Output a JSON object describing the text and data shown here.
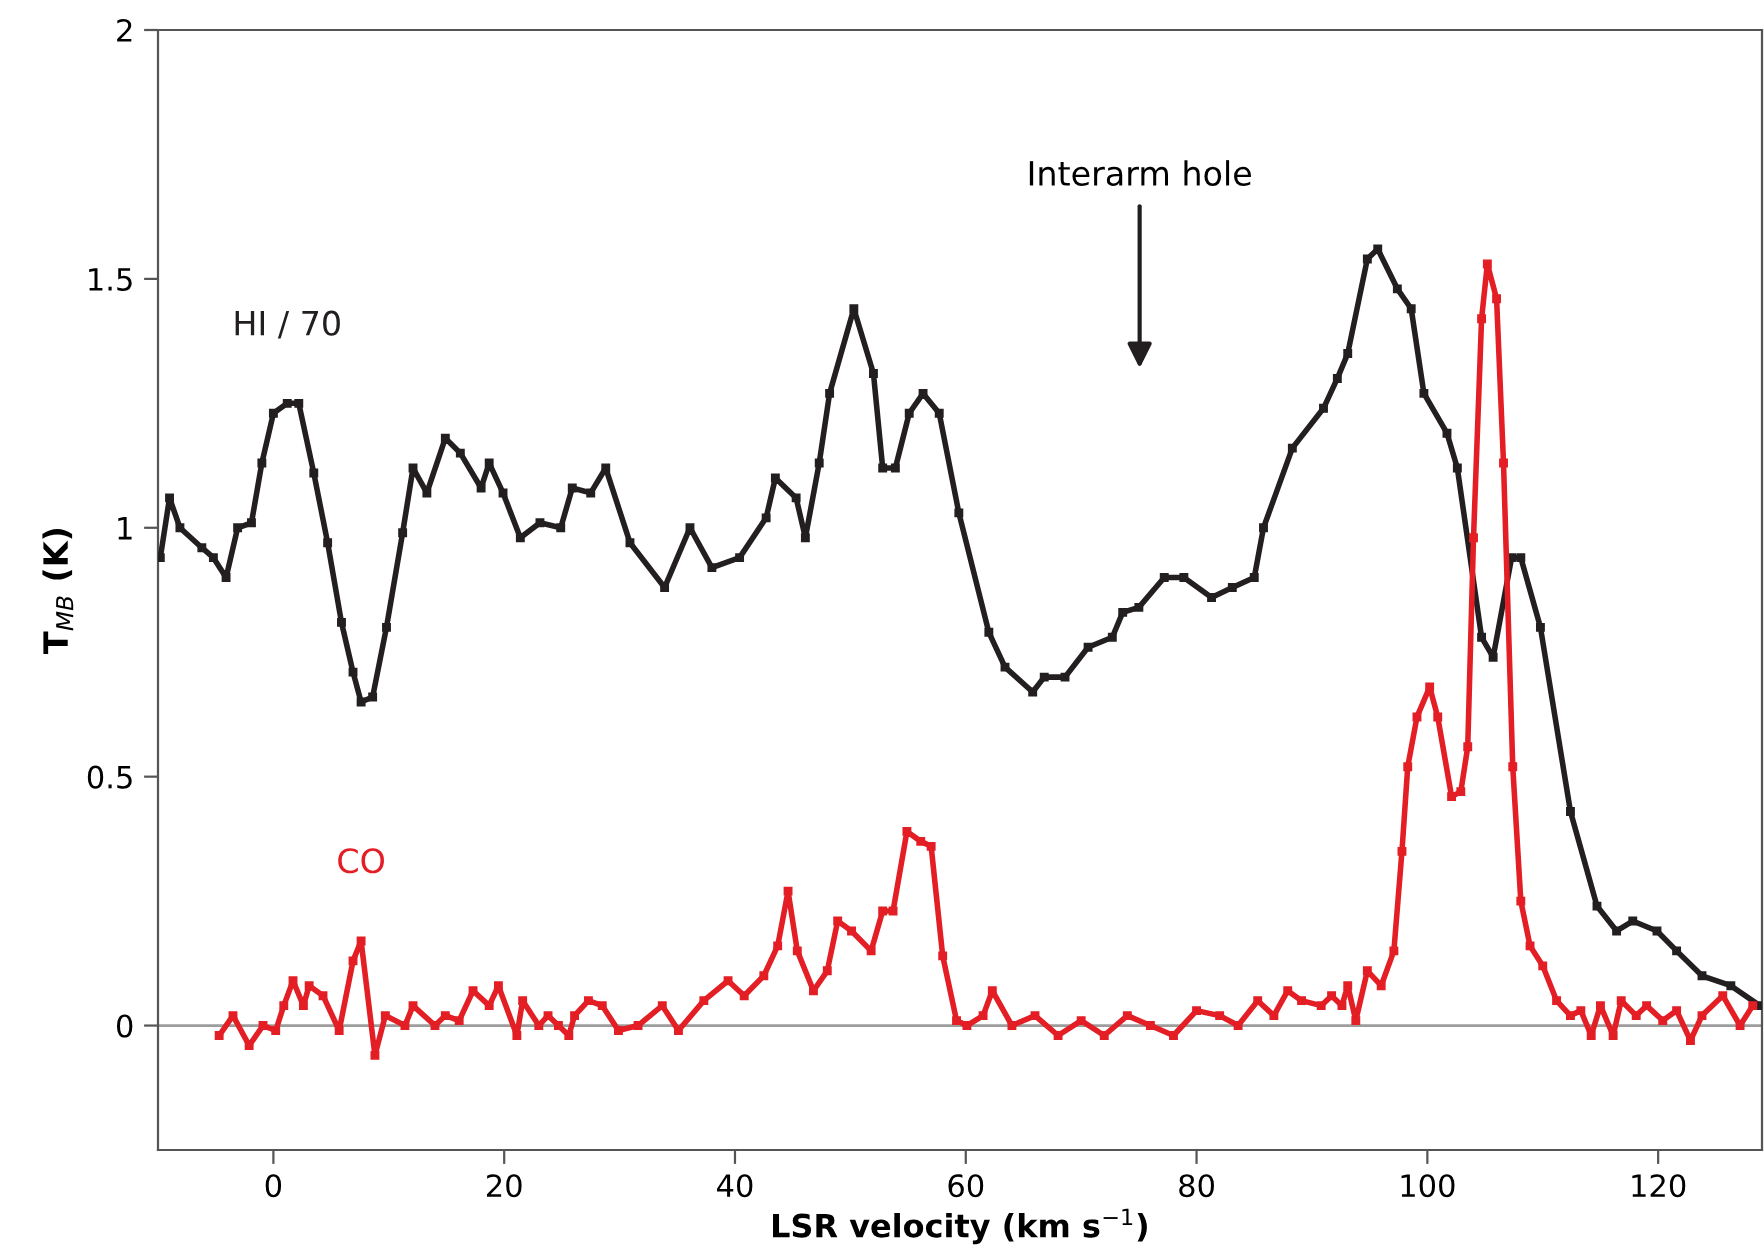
{
  "chart_data": {
    "type": "line",
    "xlabel": "LSR velocity (km s$^{−1}$)",
    "ylabel": "T$_{MB}$ (K)",
    "xlim": [
      -10,
      129
    ],
    "ylim": [
      -0.25,
      2
    ],
    "xticks": [
      0,
      20,
      40,
      60,
      80,
      100,
      120
    ],
    "yticks": [
      0,
      0.5,
      1,
      1.5,
      2
    ],
    "grid": false,
    "legend": false,
    "marker": "square",
    "line_style": "solid",
    "ref_lines": [
      {
        "axis": "y",
        "value": 0,
        "color": "#9d9d9d"
      }
    ],
    "annotations": [
      "Interarm hole"
    ],
    "series": [
      {
        "name": "HI / 70",
        "color": "#231f20",
        "x": [
          -9.8,
          -9,
          -8.1,
          -6.2,
          -5.2,
          -4.1,
          -3.1,
          -1.9,
          -1.0,
          0,
          1.2,
          2.2,
          3.5,
          4.7,
          5.9,
          6.9,
          7.6,
          8.6,
          9.8,
          11.2,
          12.1,
          13.3,
          14.9,
          16.2,
          18.0,
          18.7,
          19.9,
          21.4,
          23.1,
          24.9,
          25.9,
          27.5,
          28.8,
          30.9,
          33.9,
          36.1,
          38.0,
          40.4,
          42.7,
          43.5,
          45.3,
          46.1,
          47.3,
          48.2,
          50.3,
          52.0,
          52.8,
          53.9,
          55.1,
          56.3,
          57.7,
          59.4,
          62.0,
          63.4,
          65.8,
          66.8,
          68.6,
          70.6,
          72.7,
          73.6,
          75.0,
          77.2,
          78.9,
          81.3,
          83.1,
          85.0,
          85.8,
          88.3,
          91.0,
          92.2,
          93.1,
          94.8,
          95.7,
          97.4,
          98.6,
          99.7,
          101.7,
          102.6,
          104.7,
          105.7,
          107.3,
          108.1,
          109.8,
          112.4,
          114.7,
          116.4,
          117.8,
          119.9,
          121.6,
          123.8,
          126.3,
          128.8
        ],
        "values": [
          0.94,
          1.06,
          1.0,
          0.96,
          0.94,
          0.9,
          1.0,
          1.01,
          1.13,
          1.23,
          1.25,
          1.25,
          1.11,
          0.97,
          0.81,
          0.71,
          0.65,
          0.66,
          0.8,
          0.99,
          1.12,
          1.07,
          1.18,
          1.15,
          1.08,
          1.13,
          1.07,
          0.98,
          1.01,
          1.0,
          1.08,
          1.07,
          1.12,
          0.97,
          0.88,
          1.0,
          0.92,
          0.94,
          1.02,
          1.1,
          1.06,
          0.98,
          1.13,
          1.27,
          1.44,
          1.31,
          1.12,
          1.12,
          1.23,
          1.27,
          1.23,
          1.03,
          0.79,
          0.72,
          0.67,
          0.7,
          0.7,
          0.76,
          0.78,
          0.83,
          0.84,
          0.9,
          0.9,
          0.86,
          0.88,
          0.9,
          1.0,
          1.16,
          1.24,
          1.3,
          1.35,
          1.54,
          1.56,
          1.48,
          1.44,
          1.27,
          1.19,
          1.12,
          0.78,
          0.74,
          0.94,
          0.94,
          0.8,
          0.43,
          0.24,
          0.19,
          0.21,
          0.19,
          0.15,
          0.1,
          0.08,
          0.04
        ]
      },
      {
        "name": "CO",
        "color": "#e31e24",
        "x": [
          -4.7,
          -3.5,
          -2.1,
          -0.9,
          0.2,
          0.9,
          1.7,
          2.6,
          3.1,
          4.3,
          5.7,
          6.9,
          7.6,
          8.8,
          9.7,
          11.4,
          12.1,
          14.0,
          14.9,
          16.1,
          17.3,
          18.7,
          19.5,
          21.1,
          21.6,
          23.0,
          23.8,
          24.7,
          25.6,
          26.1,
          27.3,
          28.5,
          29.9,
          31.6,
          33.7,
          35.1,
          37.3,
          39.4,
          40.8,
          42.5,
          43.7,
          44.6,
          45.4,
          46.8,
          48.0,
          48.9,
          50.1,
          51.8,
          52.8,
          53.7,
          54.9,
          56.1,
          57.0,
          58.0,
          59.2,
          60.1,
          61.5,
          62.3,
          64,
          66,
          68,
          70,
          72,
          74,
          76,
          78,
          80,
          82,
          83.6,
          85.3,
          86.7,
          87.9,
          89.1,
          90.8,
          91.7,
          92.6,
          93.1,
          93.8,
          94.8,
          96.0,
          97.1,
          97.8,
          98.3,
          99.1,
          100.2,
          100.9,
          102.1,
          102.9,
          103.5,
          104.0,
          104.7,
          105.2,
          106.0,
          106.6,
          107.4,
          108.1,
          108.9,
          110.0,
          111.2,
          112.4,
          113.3,
          114.2,
          115.0,
          116.1,
          116.8,
          118.1,
          119.0,
          120.4,
          121.6,
          122.8,
          123.8,
          125.6,
          127.1,
          128.2
        ],
        "values": [
          -0.02,
          0.02,
          -0.04,
          0.0,
          -0.01,
          0.04,
          0.09,
          0.04,
          0.08,
          0.06,
          -0.01,
          0.13,
          0.17,
          -0.06,
          0.02,
          0.0,
          0.04,
          0.0,
          0.02,
          0.01,
          0.07,
          0.04,
          0.08,
          -0.02,
          0.05,
          0.0,
          0.02,
          0.0,
          -0.02,
          0.02,
          0.05,
          0.04,
          -0.01,
          0.0,
          0.04,
          -0.01,
          0.05,
          0.09,
          0.06,
          0.1,
          0.16,
          0.27,
          0.15,
          0.07,
          0.11,
          0.21,
          0.19,
          0.15,
          0.23,
          0.23,
          0.39,
          0.37,
          0.36,
          0.14,
          0.01,
          0.0,
          0.02,
          0.07,
          0.0,
          0.02,
          -0.02,
          0.01,
          -0.02,
          0.02,
          0.0,
          -0.02,
          0.03,
          0.02,
          0.0,
          0.05,
          0.02,
          0.07,
          0.05,
          0.04,
          0.06,
          0.04,
          0.08,
          0.01,
          0.11,
          0.08,
          0.15,
          0.35,
          0.52,
          0.62,
          0.68,
          0.62,
          0.46,
          0.47,
          0.56,
          0.98,
          1.42,
          1.53,
          1.46,
          1.13,
          0.52,
          0.25,
          0.16,
          0.12,
          0.05,
          0.02,
          0.03,
          -0.02,
          0.04,
          -0.02,
          0.05,
          0.02,
          0.04,
          0.01,
          0.03,
          -0.03,
          0.02,
          0.06,
          0.0,
          0.04
        ]
      }
    ]
  }
}
